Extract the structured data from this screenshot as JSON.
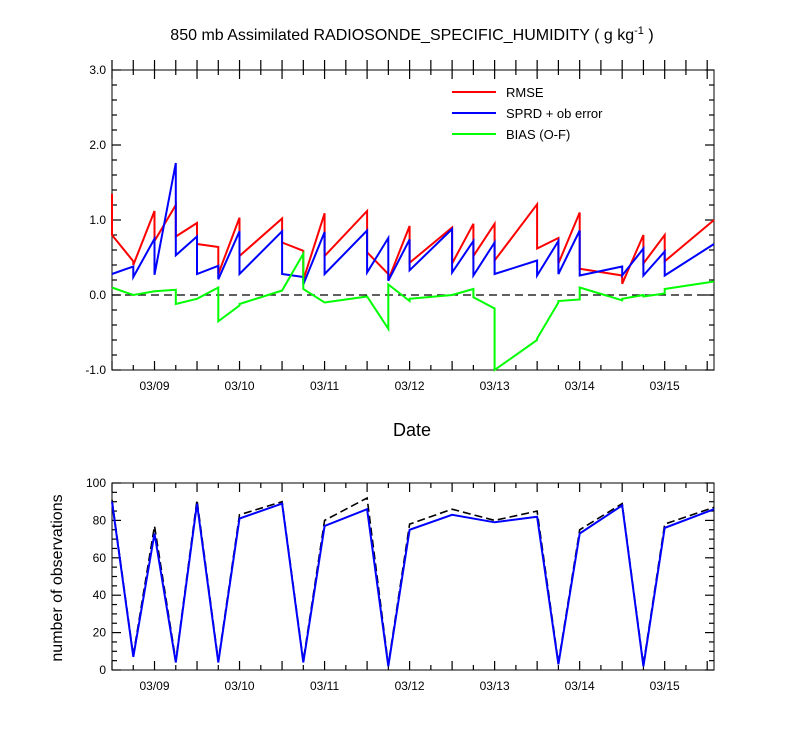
{
  "chart_data": [
    {
      "type": "line",
      "title": "850 mb Assimilated RADIOSONDE_SPECIFIC_HUMIDITY ( g kg",
      "title_sup": "-1",
      "title_end": " )",
      "xlabel": "Date",
      "ylabel": "",
      "xlim": [
        -0.5,
        6.58
      ],
      "ylim": [
        -1.0,
        3.0
      ],
      "x_ticks": [
        0,
        1,
        2,
        3,
        4,
        5,
        6
      ],
      "x_ticklabels": [
        "03/09",
        "03/10",
        "03/11",
        "03/12",
        "03/13",
        "03/14",
        "03/15"
      ],
      "y_ticks": [
        -1,
        0,
        1,
        2,
        3
      ],
      "y_ticklabels": [
        "-1.0",
        "0.0",
        "1.0",
        "2.0",
        "3.0"
      ],
      "reference_line": {
        "y": 0,
        "style": "dashed"
      },
      "legend_position": "top-right",
      "series": [
        {
          "name": "RMSE",
          "color": "#ff0000",
          "x": [
            -0.5,
            -0.5,
            -0.25,
            -0.25,
            0,
            0,
            0.25,
            0.25,
            0.5,
            0.5,
            0.75,
            0.75,
            1,
            1,
            1.5,
            1.5,
            1.75,
            1.75,
            2,
            2,
            2.5,
            2.5,
            2.75,
            2.75,
            3,
            3,
            3.5,
            3.5,
            3.75,
            3.75,
            4,
            4,
            4.5,
            4.5,
            4.75,
            4.75,
            5,
            5,
            5.5,
            5.5,
            5.75,
            5.75,
            6,
            6,
            6.58
          ],
          "y": [
            1.35,
            0.8,
            0.45,
            0.4,
            1.12,
            0.72,
            1.2,
            0.78,
            0.96,
            0.68,
            0.64,
            0.28,
            1.03,
            0.52,
            1.02,
            0.7,
            0.59,
            0.2,
            1.09,
            0.52,
            1.12,
            0.57,
            0.28,
            0.2,
            0.92,
            0.43,
            0.9,
            0.42,
            0.95,
            0.52,
            0.95,
            0.46,
            1.21,
            0.62,
            0.76,
            0.42,
            1.1,
            0.35,
            0.26,
            0.15,
            0.8,
            0.42,
            0.8,
            0.45,
            1.0
          ]
        },
        {
          "name": "SPRD + ob error",
          "color": "#0000ff",
          "x": [
            -0.5,
            -0.25,
            -0.25,
            0,
            0,
            0.25,
            0.25,
            0.5,
            0.5,
            0.75,
            0.75,
            1,
            1,
            1.5,
            1.5,
            1.75,
            1.75,
            2,
            2,
            2.5,
            2.5,
            2.75,
            2.75,
            3,
            3,
            3.5,
            3.5,
            3.75,
            3.75,
            4,
            4,
            4.5,
            4.5,
            4.75,
            4.75,
            5,
            5,
            5.5,
            5.5,
            5.75,
            5.75,
            6,
            6,
            6.58
          ],
          "y": [
            0.28,
            0.38,
            0.24,
            0.75,
            0.27,
            1.76,
            0.53,
            0.78,
            0.28,
            0.39,
            0.21,
            0.85,
            0.28,
            0.85,
            0.28,
            0.24,
            0.14,
            0.84,
            0.28,
            0.86,
            0.3,
            0.76,
            0.19,
            0.74,
            0.33,
            0.88,
            0.3,
            0.72,
            0.26,
            0.7,
            0.28,
            0.46,
            0.26,
            0.72,
            0.28,
            0.86,
            0.26,
            0.38,
            0.26,
            0.62,
            0.26,
            0.58,
            0.26,
            0.68
          ]
        },
        {
          "name": "BIAS (O-F)",
          "color": "#00ff00",
          "x": [
            -0.5,
            -0.25,
            0,
            0.25,
            0.25,
            0.5,
            0.75,
            0.75,
            1,
            1,
            1.5,
            1.75,
            1.75,
            2,
            2.5,
            2.75,
            2.75,
            3,
            3,
            3.5,
            3.75,
            3.75,
            4,
            4,
            4.5,
            4.5,
            4.75,
            4.75,
            5,
            5,
            5.5,
            5.5,
            5.75,
            5.75,
            6,
            6,
            6.58
          ],
          "y": [
            0.1,
            0.0,
            0.05,
            0.07,
            -0.12,
            -0.05,
            0.1,
            -0.35,
            -0.14,
            -0.12,
            0.06,
            0.55,
            0.08,
            -0.1,
            -0.02,
            -0.45,
            0.14,
            -0.08,
            -0.05,
            0.0,
            0.08,
            -0.03,
            -0.18,
            -1.0,
            -0.6,
            -0.58,
            -0.1,
            -0.08,
            -0.06,
            0.1,
            -0.07,
            -0.05,
            0.0,
            -0.02,
            0.02,
            0.08,
            0.18
          ]
        }
      ]
    },
    {
      "type": "line",
      "title": "",
      "xlabel": "",
      "ylabel": "number of observations",
      "xlim": [
        -0.5,
        6.58
      ],
      "ylim": [
        0,
        100
      ],
      "x_ticks": [
        0,
        1,
        2,
        3,
        4,
        5,
        6
      ],
      "x_ticklabels": [
        "03/09",
        "03/10",
        "03/11",
        "03/12",
        "03/13",
        "03/14",
        "03/15"
      ],
      "y_ticks": [
        0,
        20,
        40,
        60,
        80,
        100
      ],
      "y_ticklabels": [
        "0",
        "20",
        "40",
        "60",
        "80",
        "100"
      ],
      "series": [
        {
          "name": "",
          "color": "#000000",
          "style": "dashed",
          "x": [
            -0.5,
            -0.25,
            0,
            0.25,
            0.5,
            0.75,
            1,
            1.5,
            1.75,
            2,
            2.5,
            2.75,
            3,
            3.5,
            4,
            4.5,
            4.75,
            5,
            5.5,
            5.75,
            6,
            6.58
          ],
          "y": [
            91,
            8,
            77,
            5,
            91,
            5,
            83,
            90,
            5,
            80,
            92,
            3,
            78,
            86,
            80,
            85,
            4,
            75,
            89,
            3,
            78,
            87
          ]
        },
        {
          "name": "",
          "color": "#0000ff",
          "style": "solid",
          "x": [
            -0.5,
            -0.25,
            0,
            0.25,
            0.5,
            0.75,
            1,
            1.5,
            1.75,
            2,
            2.5,
            2.75,
            3,
            3.5,
            4,
            4.5,
            4.75,
            5,
            5.5,
            5.75,
            6,
            6.58
          ],
          "y": [
            90,
            7,
            73,
            4,
            89,
            4,
            81,
            89,
            4,
            77,
            86,
            2,
            75,
            83,
            79,
            82,
            3,
            73,
            88,
            2,
            76,
            86
          ]
        }
      ]
    }
  ]
}
